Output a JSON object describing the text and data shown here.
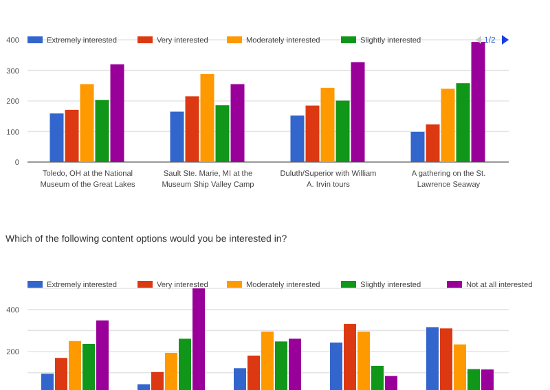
{
  "chart_data": [
    {
      "type": "bar",
      "categories": [
        "Toledo, OH at the National Museum of the Great Lakes",
        "Sault Ste. Marie, MI at the Museum Ship Valley Camp",
        "Duluth/Superior with William A. Irvin tours",
        "A gathering on the St. Lawrence Seaway"
      ],
      "series": [
        {
          "name": "Extremely interested",
          "color": "#3366cc",
          "values": [
            159,
            165,
            152,
            99
          ]
        },
        {
          "name": "Very interested",
          "color": "#dc3912",
          "values": [
            171,
            215,
            185,
            123
          ]
        },
        {
          "name": "Moderately interested",
          "color": "#ff9900",
          "values": [
            255,
            288,
            243,
            240
          ]
        },
        {
          "name": "Slightly interested",
          "color": "#109618",
          "values": [
            203,
            186,
            201,
            258
          ]
        },
        {
          "color": "#990099",
          "values": [
            320,
            255,
            327,
            393
          ]
        }
      ],
      "ylim": [
        0,
        400
      ],
      "yticks": [
        0,
        100,
        200,
        300,
        400
      ],
      "grid": true,
      "legend": "top",
      "annotations": [
        "1/2"
      ]
    },
    {
      "type": "bar",
      "title": "Which of the following content options would you be interested in?",
      "categories": [
        null,
        null,
        null,
        null,
        null
      ],
      "series": [
        {
          "name": "Extremely interested",
          "color": "#3366cc",
          "values": [
            95,
            45,
            121,
            243,
            316
          ]
        },
        {
          "name": "Very interested",
          "color": "#dc3912",
          "values": [
            170,
            103,
            181,
            331,
            310
          ]
        },
        {
          "name": "Moderately interested",
          "color": "#ff9900",
          "values": [
            250,
            194,
            295,
            295,
            234
          ]
        },
        {
          "name": "Slightly interested",
          "color": "#109618",
          "values": [
            236,
            261,
            248,
            132,
            117
          ]
        },
        {
          "name": "Not at all interested",
          "color": "#990099",
          "values": [
            348,
            500,
            261,
            84,
            115
          ]
        }
      ],
      "ylim": [
        0,
        500
      ],
      "yticks": [
        {
          "value": 100,
          "label": null
        },
        200,
        {
          "value": 300,
          "label": null
        },
        400,
        {
          "value": 500,
          "label": null
        }
      ],
      "grid": true,
      "legend": "top"
    }
  ]
}
